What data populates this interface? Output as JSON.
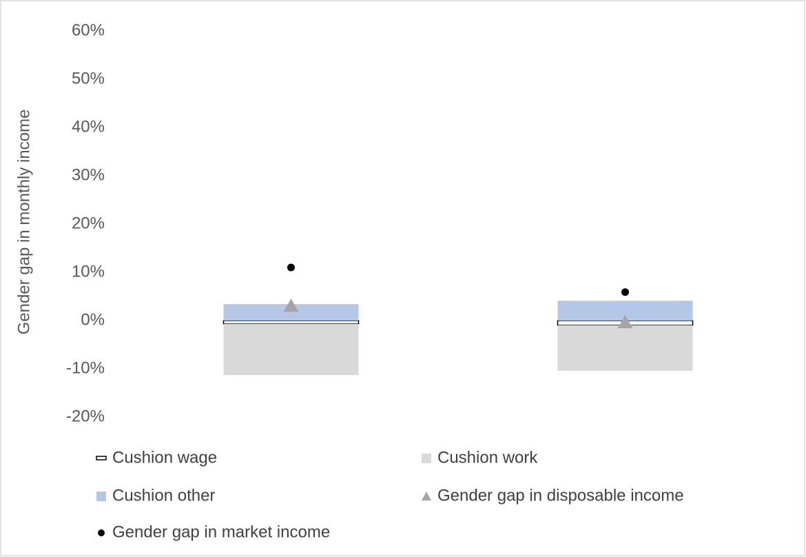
{
  "chart_data": {
    "type": "bar",
    "y_label": "Gender gap in monthly income",
    "categories": [
      null,
      null
    ],
    "series": [
      {
        "name": "Cushion wage",
        "type": "bar",
        "color": "#ffffff",
        "stroke": "#000000",
        "values": [
          -0.7,
          -1.0
        ]
      },
      {
        "name": "Cushion work",
        "type": "bar",
        "color": "#d9d9d9",
        "values": [
          -10.6,
          -9.4
        ]
      },
      {
        "name": "Cushion other",
        "type": "bar",
        "color": "#b4c7e7",
        "values": [
          3.4,
          4.1
        ]
      },
      {
        "name": "Gender gap in disposable income",
        "type": "marker",
        "marker": "triangle",
        "color": "#a5a5a5",
        "values": [
          3.1,
          -0.3
        ]
      },
      {
        "name": "Gender gap in market income",
        "type": "marker",
        "marker": "circle",
        "color": "#000000",
        "values": [
          11.0,
          5.9
        ]
      }
    ],
    "ylim": [
      -20,
      60
    ],
    "yticks": [
      {
        "value": -20,
        "label": "-20%"
      },
      {
        "value": -10,
        "label": "-10%"
      },
      {
        "value": 0,
        "label": "0%"
      },
      {
        "value": 10,
        "label": "10%"
      },
      {
        "value": 20,
        "label": "20%"
      },
      {
        "value": 30,
        "label": "30%"
      },
      {
        "value": 40,
        "label": "40%"
      },
      {
        "value": 50,
        "label": "50%"
      },
      {
        "value": 60,
        "label": "60%"
      }
    ],
    "grid": false
  }
}
